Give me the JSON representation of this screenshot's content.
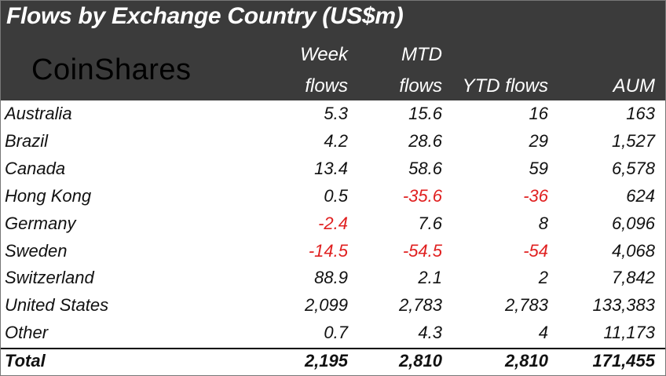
{
  "header": {
    "title": "Flows by Exchange Country (US$m)",
    "logo_text": "CoinShares",
    "columns": [
      {
        "line1": "Week",
        "line2": "flows"
      },
      {
        "line1": "MTD",
        "line2": "flows"
      },
      {
        "line1": "",
        "line2": "YTD flows"
      },
      {
        "line1": "",
        "line2": "AUM"
      }
    ]
  },
  "chart_data": {
    "type": "table",
    "title": "Flows by Exchange Country (US$m)",
    "columns": [
      "Week flows",
      "MTD flows",
      "YTD flows",
      "AUM"
    ],
    "rows": [
      {
        "name": "Australia",
        "values": [
          "5.3",
          "15.6",
          "16",
          "163"
        ]
      },
      {
        "name": "Brazil",
        "values": [
          "4.2",
          "28.6",
          "29",
          "1,527"
        ]
      },
      {
        "name": "Canada",
        "values": [
          "13.4",
          "58.6",
          "59",
          "6,578"
        ]
      },
      {
        "name": "Hong Kong",
        "values": [
          "0.5",
          "-35.6",
          "-36",
          "624"
        ]
      },
      {
        "name": "Germany",
        "values": [
          "-2.4",
          "7.6",
          "8",
          "6,096"
        ]
      },
      {
        "name": "Sweden",
        "values": [
          "-14.5",
          "-54.5",
          "-54",
          "4,068"
        ]
      },
      {
        "name": "Switzerland",
        "values": [
          "88.9",
          "2.1",
          "2",
          "7,842"
        ]
      },
      {
        "name": "United States",
        "values": [
          "2,099",
          "2,783",
          "2,783",
          "133,383"
        ]
      },
      {
        "name": "Other",
        "values": [
          "0.7",
          "4.3",
          "4",
          "11,173"
        ]
      }
    ],
    "total": {
      "name": "Total",
      "values": [
        "2,195",
        "2,810",
        "2,810",
        "171,455"
      ]
    },
    "negative_color": "#e02020",
    "header_background": "#3b3b3b"
  }
}
